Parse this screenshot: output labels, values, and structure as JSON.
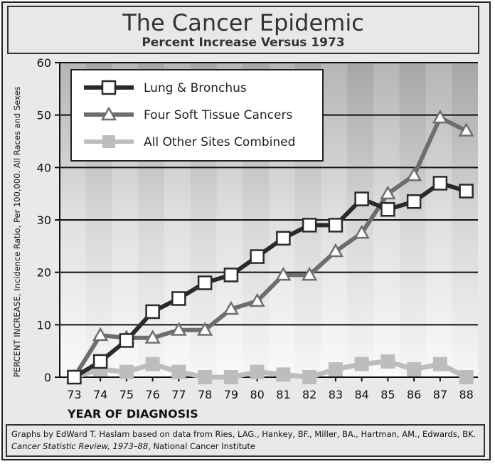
{
  "title": "The Cancer Epidemic",
  "subtitle": "Percent Increase Versus 1973",
  "footer": {
    "line1": "Graphs by EdWard T. Haslam based on data from Ries, LAG., Hankey, BF., Miller, BA., Hartman, AM., Edwards, BK.",
    "line2_italic": "Cancer Statistic Review, 1973–88",
    "line2_rest": ", National Cancer Institute"
  },
  "chart_data": {
    "type": "line",
    "title": "The Cancer Epidemic",
    "subtitle": "Percent Increase Versus 1973",
    "xlabel": "YEAR OF DIAGNOSIS",
    "ylabel": "PERCENT INCREASE, Incidence Ratio, Per 100,000. All Races and Sexes",
    "categories": [
      "73",
      "74",
      "75",
      "76",
      "77",
      "78",
      "79",
      "80",
      "81",
      "82",
      "83",
      "84",
      "85",
      "86",
      "87",
      "88"
    ],
    "ylim": [
      0,
      60
    ],
    "yticks": [
      0,
      10,
      20,
      30,
      40,
      50,
      60
    ],
    "grid": true,
    "legend_position": "top-left",
    "series": [
      {
        "name": "Lung & Bronchus",
        "marker": "square",
        "color": "#2a2a2a",
        "values": [
          0,
          3,
          7,
          12.5,
          15,
          18,
          19.5,
          23,
          26.5,
          29,
          29,
          34,
          32,
          33.5,
          37,
          35.5
        ]
      },
      {
        "name": "Four Soft Tissue Cancers",
        "marker": "triangle",
        "color": "#6e6e6e",
        "values": [
          0,
          8,
          7.5,
          7.5,
          9,
          9,
          13,
          14.5,
          19.5,
          19.5,
          24,
          27.5,
          35,
          38.5,
          49.5,
          47
        ]
      },
      {
        "name": "All Other Sites Combined",
        "marker": "square",
        "color": "#bdbdbd",
        "values": [
          0,
          1.5,
          1,
          2.5,
          1,
          0,
          0,
          1,
          0.5,
          0,
          1.5,
          2.5,
          3,
          1.5,
          2.5,
          0
        ]
      }
    ]
  }
}
